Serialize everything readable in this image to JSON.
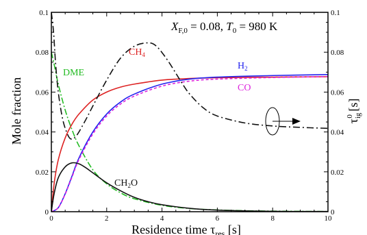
{
  "chart_data": {
    "type": "line",
    "annotation": {
      "x_sym": "X",
      "x_sub": "F,0",
      "mid": " = 0.08, ",
      "t_sym": "T",
      "t_sub": "0",
      "end": " = 980 K"
    },
    "xlabel": {
      "main": "Residence time τ",
      "sub": "res",
      "unit": " [s]"
    },
    "ylabel_left": "Mole fraction",
    "ylabel_right": {
      "sym": "τ",
      "sub": "ig",
      "sup": "0",
      "unit": " [s]"
    },
    "x_ticks": [
      "0",
      "2",
      "4",
      "6",
      "8",
      "10"
    ],
    "y_left_ticks": [
      "0",
      "0.02",
      "0.04",
      "0.06",
      "0.08",
      "0.1"
    ],
    "y_right_ticks": [
      "0",
      "0.02",
      "0.04",
      "0.06",
      "0.08",
      "0.1"
    ],
    "xlim": [
      0,
      10
    ],
    "ylim_left": [
      0,
      0.1
    ],
    "ylim_right": [
      0,
      0.1
    ],
    "series": [
      {
        "name": "DME",
        "label_main": "DME",
        "label_sub": "",
        "color": "#22bb22",
        "dash": "9,3,2,3",
        "axis": "left",
        "x": [
          0,
          0.1,
          0.25,
          0.5,
          0.75,
          1,
          1.5,
          2,
          2.5,
          3,
          4,
          5,
          6,
          7,
          8,
          10
        ],
        "y": [
          0.08,
          0.074,
          0.064,
          0.051,
          0.041,
          0.033,
          0.021,
          0.014,
          0.0095,
          0.0065,
          0.0032,
          0.0016,
          0.0009,
          0.0005,
          0.0003,
          0.0001
        ]
      },
      {
        "name": "CH4",
        "label_main": "CH",
        "label_sub": "4",
        "color": "#dd2222",
        "dash": "",
        "axis": "left",
        "x": [
          0,
          0.1,
          0.25,
          0.5,
          0.75,
          1,
          1.5,
          2,
          2.5,
          3,
          4,
          5,
          6,
          8,
          10
        ],
        "y": [
          0,
          0.014,
          0.026,
          0.037,
          0.044,
          0.049,
          0.056,
          0.06,
          0.0625,
          0.064,
          0.066,
          0.0668,
          0.0672,
          0.0675,
          0.0677
        ]
      },
      {
        "name": "H2",
        "label_main": "H",
        "label_sub": "2",
        "color": "#2222ee",
        "dash": "",
        "axis": "left",
        "x": [
          0,
          0.25,
          0.5,
          0.75,
          1,
          1.5,
          2,
          2.5,
          3,
          4,
          5,
          6,
          8,
          10
        ],
        "y": [
          0,
          0.002,
          0.009,
          0.018,
          0.027,
          0.04,
          0.049,
          0.055,
          0.059,
          0.064,
          0.0665,
          0.0675,
          0.0683,
          0.0688
        ]
      },
      {
        "name": "CO",
        "label_main": "CO",
        "label_sub": "",
        "color": "#dd22dd",
        "dash": "4,3",
        "axis": "left",
        "x": [
          0,
          0.25,
          0.5,
          0.75,
          1,
          1.5,
          2,
          2.5,
          3,
          4,
          5,
          6,
          8,
          10
        ],
        "y": [
          0,
          0.002,
          0.0088,
          0.0175,
          0.0262,
          0.039,
          0.048,
          0.054,
          0.058,
          0.063,
          0.0655,
          0.0665,
          0.0673,
          0.0678
        ]
      },
      {
        "name": "CH2O",
        "label_main": "CH",
        "label_sub": "2",
        "label_tail": "O",
        "color": "#111111",
        "dash": "",
        "axis": "left",
        "x": [
          0,
          0.1,
          0.25,
          0.5,
          0.75,
          1,
          1.25,
          1.5,
          2,
          2.5,
          3,
          3.5,
          4,
          5,
          6,
          8,
          10
        ],
        "y": [
          0,
          0.009,
          0.017,
          0.0225,
          0.0245,
          0.024,
          0.022,
          0.0195,
          0.0145,
          0.0105,
          0.0072,
          0.005,
          0.0035,
          0.0017,
          0.0008,
          0.0002,
          0.0001
        ]
      },
      {
        "name": "tau_ig0",
        "label_main": "",
        "label_sub": "",
        "color": "#111111",
        "dash": "10,4,2,4",
        "axis": "right",
        "x": [
          0,
          0.08,
          0.15,
          0.25,
          0.4,
          0.55,
          0.7,
          0.9,
          1.2,
          1.5,
          2,
          2.5,
          3,
          3.5,
          3.8,
          4.2,
          4.7,
          5,
          5.5,
          6,
          7,
          8,
          9,
          10
        ],
        "y": [
          0.1,
          0.09,
          0.075,
          0.06,
          0.047,
          0.04,
          0.0365,
          0.038,
          0.045,
          0.053,
          0.066,
          0.077,
          0.083,
          0.0847,
          0.083,
          0.076,
          0.065,
          0.059,
          0.052,
          0.048,
          0.0445,
          0.043,
          0.0423,
          0.0418
        ]
      }
    ],
    "arrow_note": "ellipse with arrow pointing to right axis",
    "grid": false,
    "legend": "inline labels"
  }
}
